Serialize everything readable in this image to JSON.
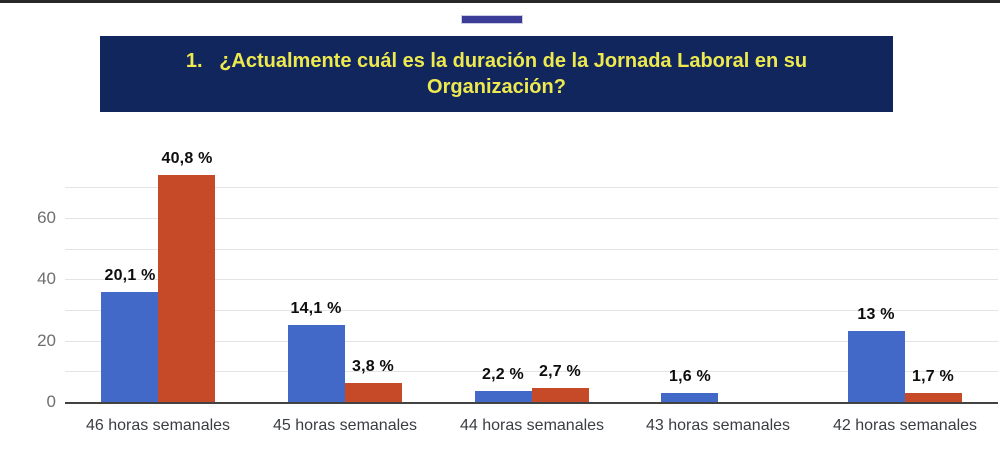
{
  "page": {
    "top_border_color": "#282828",
    "accent_dash_color": "#3A3C96",
    "background": "#ffffff"
  },
  "title": {
    "text": "1.   ¿Actualmente cuál es la duración de la Jornada Laboral en su Organización?",
    "background": "#12265E",
    "color": "#EDE94F"
  },
  "chart_data": {
    "type": "bar",
    "title": "",
    "xlabel": "",
    "ylabel": "",
    "categories": [
      "46 horas semanales",
      "45 horas semanales",
      "44 horas semanales",
      "43 horas semanales",
      "42 horas semanales"
    ],
    "series": [
      {
        "name": "serie-azul",
        "color": "#4369C8",
        "values": [
          36,
          25.2,
          3.7,
          2.9,
          23.2
        ],
        "labels": [
          "20,1 %",
          "14,1 %",
          "2,2 %",
          "1,6 %",
          "13 %"
        ]
      },
      {
        "name": "serie-roja",
        "color": "#C64A28",
        "values": [
          74,
          6.3,
          4.5,
          0,
          2.8
        ],
        "labels": [
          "40,8 %",
          "3,8 %",
          "2,7 %",
          "",
          "1,7 %"
        ]
      }
    ],
    "values_unit": "respuestas (conteo)",
    "labels_unit": "porcentaje",
    "y_ticks": [
      0,
      20,
      40,
      60
    ],
    "gridline_step": 10,
    "ylim": [
      0,
      75
    ],
    "grid": true,
    "legend_position": "none",
    "axis_color": "#424242",
    "gridline_color": "#e4e4e4",
    "tick_label_color": "#6f6f6f",
    "category_label_color": "#3a3d42",
    "bar_label_color": "#0d0d0d"
  }
}
